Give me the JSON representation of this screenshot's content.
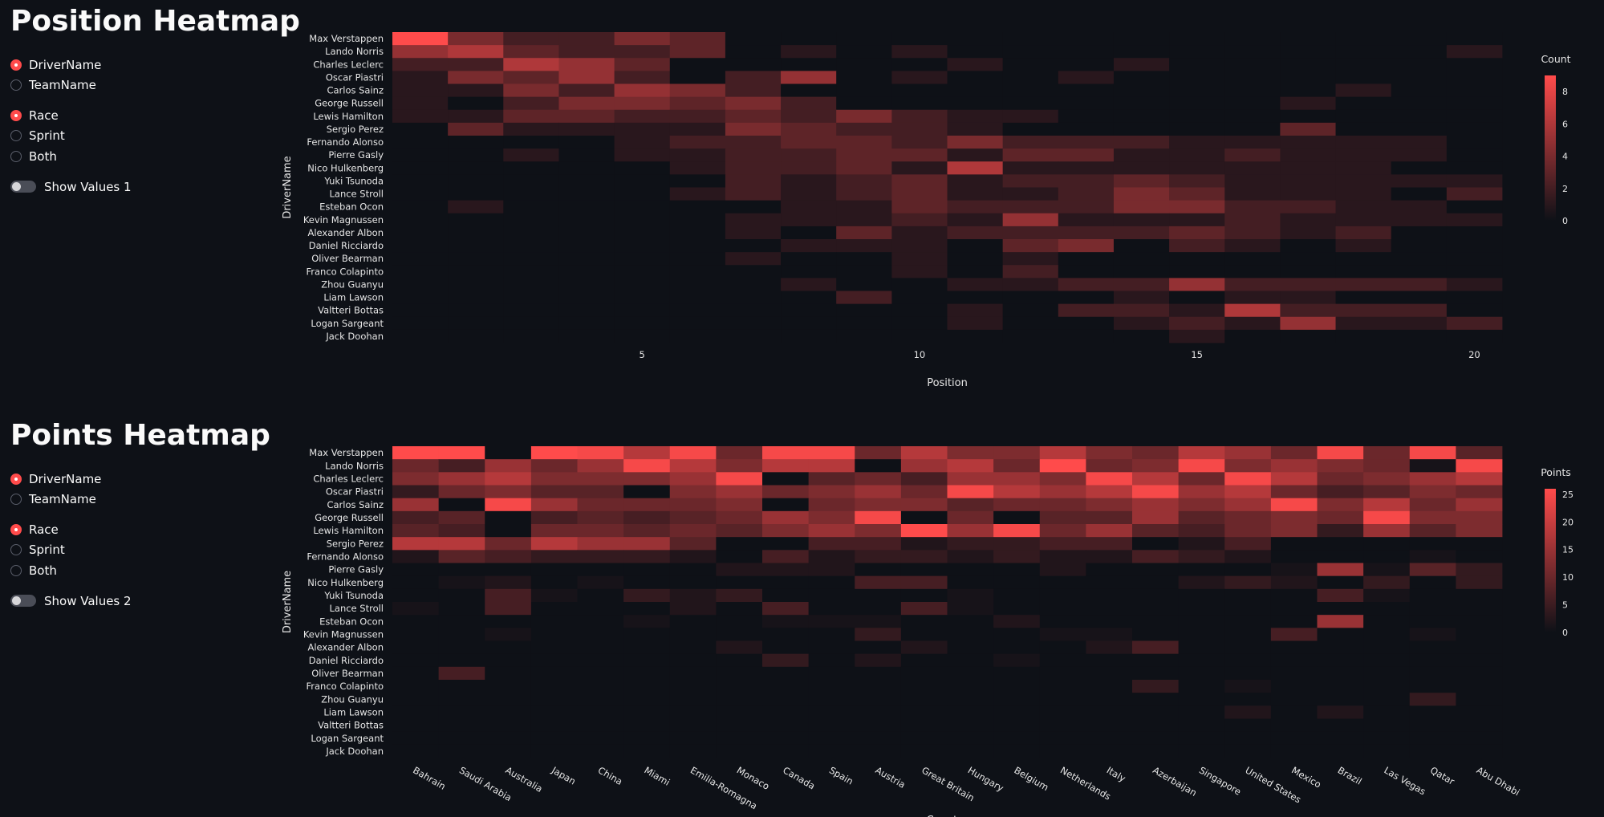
{
  "section1": {
    "title": "Position Heatmap",
    "group_options": [
      "DriverName",
      "TeamName"
    ],
    "group_selected": 0,
    "session_options": [
      "Race",
      "Sprint",
      "Both"
    ],
    "session_selected": 0,
    "toggle_label": "Show Values 1"
  },
  "section2": {
    "title": "Points Heatmap",
    "group_options": [
      "DriverName",
      "TeamName"
    ],
    "group_selected": 0,
    "session_options": [
      "Race",
      "Sprint",
      "Both"
    ],
    "session_selected": 0,
    "toggle_label": "Show Values 2"
  },
  "colors": {
    "background": "#0e1117",
    "accent": "#ff4b4b",
    "scale_low": "#0e1117",
    "scale_high": "#ff4b4b"
  },
  "chart_data": [
    {
      "type": "heatmap",
      "xlabel": "Position",
      "ylabel": "DriverName",
      "colorbar_title": "Count",
      "colorbar_ticks": [
        0,
        2,
        4,
        6,
        8
      ],
      "zmax": 9,
      "x": [
        1,
        2,
        3,
        4,
        5,
        6,
        7,
        8,
        9,
        10,
        11,
        12,
        13,
        14,
        15,
        16,
        17,
        18,
        19,
        20
      ],
      "x_ticks": [
        5,
        10,
        15,
        20
      ],
      "y": [
        "Max Verstappen",
        "Lando Norris",
        "Charles Leclerc",
        "Oscar Piastri",
        "Carlos Sainz",
        "George Russell",
        "Lewis Hamilton",
        "Sergio Perez",
        "Fernando Alonso",
        "Pierre Gasly",
        "Nico Hulkenberg",
        "Yuki Tsunoda",
        "Lance Stroll",
        "Esteban Ocon",
        "Kevin Magnussen",
        "Alexander Albon",
        "Daniel Ricciardo",
        "Oliver Bearman",
        "Franco Colapinto",
        "Zhou Guanyu",
        "Liam Lawson",
        "Valtteri Bottas",
        "Logan Sargeant",
        "Jack Doohan"
      ],
      "z": [
        [
          9,
          4,
          2,
          2,
          4,
          3,
          0,
          0,
          0,
          0,
          0,
          0,
          0,
          0,
          0,
          0,
          0,
          0,
          0,
          0
        ],
        [
          5,
          6,
          3,
          2,
          2,
          3,
          0,
          1,
          0,
          1,
          0,
          0,
          0,
          0,
          0,
          0,
          0,
          0,
          0,
          1
        ],
        [
          2,
          2,
          6,
          5,
          3,
          0,
          0,
          0,
          0,
          0,
          1,
          0,
          0,
          1,
          0,
          0,
          0,
          0,
          0,
          0
        ],
        [
          1,
          4,
          3,
          5,
          2,
          0,
          2,
          5,
          0,
          1,
          0,
          0,
          1,
          0,
          0,
          0,
          0,
          0,
          0,
          0
        ],
        [
          1,
          1,
          4,
          2,
          5,
          4,
          2,
          0,
          0,
          0,
          0,
          0,
          0,
          0,
          0,
          0,
          0,
          1,
          0,
          0
        ],
        [
          1,
          0,
          2,
          4,
          4,
          3,
          4,
          2,
          0,
          0,
          0,
          0,
          0,
          0,
          0,
          0,
          1,
          0,
          0,
          0
        ],
        [
          1,
          1,
          3,
          3,
          2,
          2,
          3,
          2,
          4,
          2,
          1,
          1,
          0,
          0,
          0,
          0,
          0,
          0,
          0,
          0
        ],
        [
          0,
          3,
          1,
          1,
          1,
          1,
          4,
          3,
          2,
          2,
          1,
          0,
          0,
          0,
          0,
          0,
          3,
          0,
          0,
          0
        ],
        [
          0,
          0,
          0,
          0,
          1,
          2,
          2,
          3,
          3,
          2,
          4,
          2,
          2,
          2,
          1,
          1,
          1,
          1,
          1,
          0
        ],
        [
          0,
          0,
          1,
          0,
          1,
          1,
          2,
          2,
          3,
          3,
          1,
          3,
          3,
          1,
          1,
          2,
          1,
          1,
          1,
          0
        ],
        [
          0,
          0,
          0,
          0,
          0,
          1,
          2,
          2,
          3,
          1,
          6,
          1,
          1,
          1,
          1,
          1,
          1,
          1,
          0,
          0
        ],
        [
          0,
          0,
          0,
          0,
          0,
          0,
          2,
          1,
          2,
          3,
          1,
          2,
          2,
          3,
          2,
          1,
          1,
          1,
          1,
          1
        ],
        [
          0,
          0,
          0,
          0,
          0,
          1,
          2,
          1,
          2,
          3,
          1,
          1,
          2,
          4,
          3,
          1,
          1,
          1,
          0,
          2
        ],
        [
          0,
          1,
          0,
          0,
          0,
          0,
          0,
          1,
          1,
          3,
          2,
          2,
          2,
          4,
          4,
          2,
          2,
          1,
          1,
          0
        ],
        [
          0,
          0,
          0,
          0,
          0,
          0,
          1,
          1,
          1,
          2,
          1,
          5,
          1,
          1,
          1,
          2,
          1,
          1,
          1,
          1
        ],
        [
          0,
          0,
          0,
          0,
          0,
          0,
          1,
          0,
          3,
          1,
          2,
          2,
          2,
          2,
          3,
          2,
          1,
          2,
          0,
          0
        ],
        [
          0,
          0,
          0,
          0,
          0,
          0,
          0,
          1,
          1,
          1,
          0,
          3,
          4,
          0,
          2,
          1,
          0,
          1,
          0,
          0
        ],
        [
          0,
          0,
          0,
          0,
          0,
          0,
          1,
          0,
          0,
          1,
          0,
          1,
          0,
          0,
          0,
          0,
          0,
          0,
          0,
          0
        ],
        [
          0,
          0,
          0,
          0,
          0,
          0,
          0,
          0,
          0,
          1,
          0,
          2,
          0,
          0,
          0,
          0,
          0,
          0,
          0,
          0
        ],
        [
          0,
          0,
          0,
          0,
          0,
          0,
          0,
          1,
          0,
          0,
          1,
          1,
          2,
          2,
          5,
          2,
          2,
          2,
          2,
          1
        ],
        [
          0,
          0,
          0,
          0,
          0,
          0,
          0,
          0,
          2,
          0,
          0,
          0,
          0,
          1,
          0,
          1,
          1,
          0,
          0,
          0
        ],
        [
          0,
          0,
          0,
          0,
          0,
          0,
          0,
          0,
          0,
          0,
          1,
          0,
          2,
          2,
          1,
          6,
          2,
          2,
          2,
          0
        ],
        [
          0,
          0,
          0,
          0,
          0,
          0,
          0,
          0,
          0,
          0,
          1,
          0,
          0,
          1,
          2,
          1,
          5,
          1,
          1,
          2
        ],
        [
          0,
          0,
          0,
          0,
          0,
          0,
          0,
          0,
          0,
          0,
          0,
          0,
          0,
          0,
          1,
          0,
          0,
          0,
          0,
          0
        ]
      ]
    },
    {
      "type": "heatmap",
      "xlabel": "Country",
      "ylabel": "DriverName",
      "colorbar_title": "Points",
      "colorbar_ticks": [
        0,
        5,
        10,
        15,
        20,
        25
      ],
      "zmax": 26,
      "x": [
        "Bahrain",
        "Saudi Arabia",
        "Australia",
        "Japan",
        "China",
        "Miami",
        "Emilia-Romagna",
        "Monaco",
        "Canada",
        "Spain",
        "Austria",
        "Great Britain",
        "Hungary",
        "Belgium",
        "Netherlands",
        "Italy",
        "Azerbaijan",
        "Singapore",
        "United States",
        "Mexico",
        "Brazil",
        "Las Vegas",
        "Qatar",
        "Abu Dhabi"
      ],
      "y": [
        "Max Verstappen",
        "Lando Norris",
        "Charles Leclerc",
        "Oscar Piastri",
        "Carlos Sainz",
        "George Russell",
        "Lewis Hamilton",
        "Sergio Perez",
        "Fernando Alonso",
        "Pierre Gasly",
        "Nico Hulkenberg",
        "Yuki Tsunoda",
        "Lance Stroll",
        "Esteban Ocon",
        "Kevin Magnussen",
        "Alexander Albon",
        "Daniel Ricciardo",
        "Oliver Bearman",
        "Franco Colapinto",
        "Zhou Guanyu",
        "Liam Lawson",
        "Valtteri Bottas",
        "Logan Sargeant",
        "Jack Doohan"
      ],
      "z": [
        [
          26,
          26,
          0,
          26,
          25,
          18,
          25,
          10,
          25,
          25,
          10,
          18,
          12,
          12,
          18,
          12,
          10,
          18,
          15,
          10,
          25,
          10,
          25,
          8
        ],
        [
          10,
          6,
          15,
          10,
          15,
          25,
          18,
          12,
          18,
          18,
          0,
          15,
          18,
          10,
          26,
          10,
          12,
          25,
          12,
          15,
          12,
          10,
          1,
          25
        ],
        [
          12,
          15,
          18,
          12,
          12,
          12,
          15,
          25,
          0,
          8,
          10,
          6,
          15,
          15,
          12,
          25,
          18,
          10,
          25,
          18,
          10,
          12,
          15,
          18
        ],
        [
          4,
          10,
          12,
          8,
          8,
          0,
          12,
          15,
          10,
          12,
          15,
          10,
          25,
          18,
          15,
          18,
          25,
          15,
          18,
          10,
          6,
          8,
          12,
          10
        ],
        [
          15,
          0,
          25,
          15,
          10,
          10,
          10,
          12,
          0,
          10,
          12,
          12,
          8,
          10,
          10,
          12,
          15,
          12,
          15,
          25,
          12,
          18,
          10,
          15
        ],
        [
          6,
          8,
          0,
          6,
          8,
          6,
          8,
          10,
          15,
          12,
          25,
          0,
          10,
          0,
          8,
          8,
          15,
          8,
          10,
          12,
          10,
          25,
          12,
          12
        ],
        [
          8,
          6,
          0,
          10,
          10,
          8,
          10,
          8,
          12,
          15,
          12,
          26,
          15,
          25,
          10,
          15,
          8,
          6,
          10,
          12,
          4,
          15,
          8,
          12
        ],
        [
          18,
          18,
          10,
          18,
          15,
          15,
          8,
          0,
          0,
          6,
          6,
          2,
          4,
          4,
          6,
          6,
          0,
          2,
          6,
          0,
          0,
          0,
          0,
          0
        ],
        [
          2,
          8,
          6,
          4,
          4,
          4,
          2,
          0,
          6,
          2,
          4,
          4,
          2,
          4,
          2,
          2,
          6,
          4,
          2,
          0,
          0,
          0,
          1,
          0
        ],
        [
          0,
          0,
          0,
          0,
          0,
          0,
          0,
          2,
          2,
          2,
          0,
          0,
          0,
          0,
          2,
          0,
          0,
          0,
          0,
          1,
          15,
          1,
          8,
          4
        ],
        [
          0,
          1,
          2,
          0,
          1,
          0,
          0,
          0,
          0,
          0,
          6,
          6,
          0,
          0,
          0,
          0,
          0,
          2,
          4,
          2,
          0,
          4,
          0,
          4
        ],
        [
          0,
          0,
          6,
          1,
          0,
          4,
          2,
          4,
          0,
          0,
          0,
          0,
          1,
          0,
          0,
          0,
          0,
          0,
          0,
          0,
          6,
          1,
          0,
          0
        ],
        [
          1,
          0,
          6,
          0,
          0,
          0,
          2,
          0,
          6,
          0,
          0,
          6,
          1,
          0,
          0,
          0,
          0,
          0,
          0,
          0,
          0,
          0,
          0,
          0
        ],
        [
          0,
          0,
          0,
          0,
          0,
          1,
          0,
          0,
          1,
          1,
          1,
          0,
          0,
          2,
          0,
          0,
          0,
          0,
          0,
          0,
          15,
          0,
          0,
          0
        ],
        [
          0,
          0,
          1,
          0,
          0,
          0,
          0,
          0,
          0,
          0,
          4,
          0,
          0,
          0,
          1,
          1,
          0,
          0,
          0,
          6,
          0,
          0,
          1,
          0
        ],
        [
          0,
          0,
          0,
          0,
          0,
          0,
          0,
          2,
          0,
          0,
          0,
          2,
          0,
          0,
          0,
          2,
          6,
          0,
          0,
          0,
          0,
          0,
          0,
          0
        ],
        [
          0,
          0,
          0,
          0,
          0,
          0,
          0,
          0,
          4,
          0,
          2,
          0,
          0,
          1,
          0,
          0,
          0,
          0,
          0,
          0,
          0,
          0,
          0,
          0
        ],
        [
          0,
          6,
          0,
          0,
          0,
          0,
          0,
          0,
          0,
          0,
          0,
          0,
          0,
          0,
          0,
          0,
          0,
          0,
          0,
          0,
          0,
          0,
          0,
          0
        ],
        [
          0,
          0,
          0,
          0,
          0,
          0,
          0,
          0,
          0,
          0,
          0,
          0,
          0,
          0,
          0,
          0,
          4,
          0,
          1,
          0,
          0,
          0,
          0,
          0
        ],
        [
          0,
          0,
          0,
          0,
          0,
          0,
          0,
          0,
          0,
          0,
          0,
          0,
          0,
          0,
          0,
          0,
          0,
          0,
          0,
          0,
          0,
          0,
          4,
          0
        ],
        [
          0,
          0,
          0,
          0,
          0,
          0,
          0,
          0,
          0,
          0,
          0,
          0,
          0,
          0,
          0,
          0,
          0,
          0,
          2,
          0,
          2,
          0,
          0,
          0
        ],
        [
          0,
          0,
          0,
          0,
          0,
          0,
          0,
          0,
          0,
          0,
          0,
          0,
          0,
          0,
          0,
          0,
          0,
          0,
          0,
          0,
          0,
          0,
          0,
          0
        ],
        [
          0,
          0,
          0,
          0,
          0,
          0,
          0,
          0,
          0,
          0,
          0,
          0,
          0,
          0,
          0,
          0,
          0,
          0,
          0,
          0,
          0,
          0,
          0,
          0
        ],
        [
          0,
          0,
          0,
          0,
          0,
          0,
          0,
          0,
          0,
          0,
          0,
          0,
          0,
          0,
          0,
          0,
          0,
          0,
          0,
          0,
          0,
          0,
          0,
          0
        ]
      ]
    }
  ]
}
